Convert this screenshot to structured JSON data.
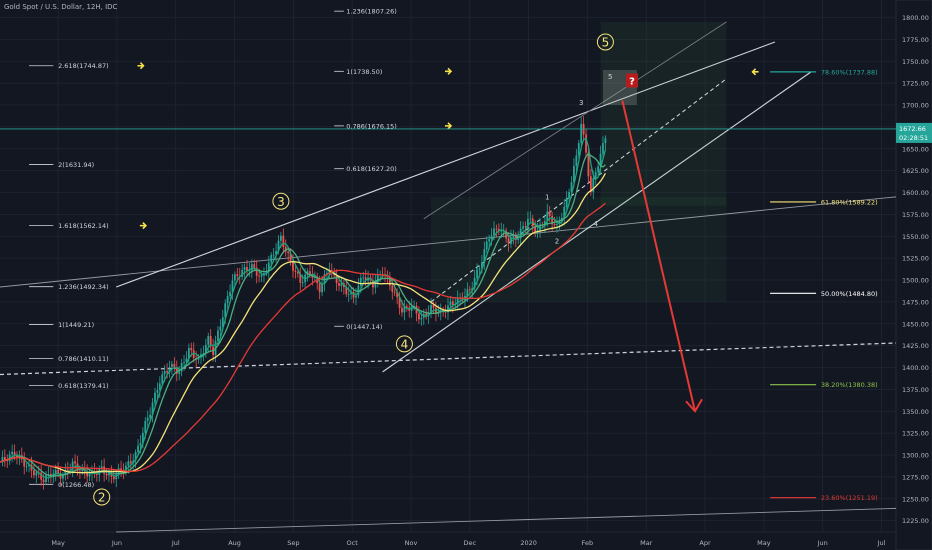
{
  "header": {
    "title": "Gold Spot / U.S. Dollar, 12H, IDC"
  },
  "colors": {
    "background": "#131722",
    "grid": "#1f2533",
    "up": "#26a69a",
    "down": "#ef5350",
    "ema_fast": "#1fa27a",
    "ema_mid": "#4caf80",
    "ma_yellow": "#f5e47a",
    "ma_red": "#e53935",
    "fib_line": "#d1d4dc",
    "label": "#b2b5be",
    "current_price": "#26a69a",
    "arrow_red": "#e53935",
    "arrow_yellow": "#f5e14a"
  },
  "price_axis": {
    "badge_price": "1672.66",
    "badge_countdown": "02:28:51"
  },
  "chart_data": {
    "type": "candlestick",
    "title": "Gold Spot / U.S. Dollar, 12H, IDC",
    "y_ticks": [
      1225,
      1250,
      1275,
      1300,
      1325,
      1350,
      1375,
      1400,
      1425,
      1450,
      1475,
      1500,
      1525,
      1550,
      1575,
      1600,
      1625,
      1650,
      1675,
      1700,
      1725,
      1750,
      1775,
      1800
    ],
    "ylim": [
      1212,
      1820
    ],
    "x_ticks": [
      "May",
      "Jun",
      "Jul",
      "Aug",
      "Sep",
      "Oct",
      "Nov",
      "Dec",
      "2020",
      "Feb",
      "Mar",
      "Apr",
      "May",
      "Jun",
      "Jul"
    ],
    "price_path": [
      [
        0,
        1292
      ],
      [
        6,
        1302
      ],
      [
        12,
        1285
      ],
      [
        18,
        1272
      ],
      [
        22,
        1280
      ],
      [
        26,
        1276
      ],
      [
        30,
        1290
      ],
      [
        34,
        1281
      ],
      [
        38,
        1278
      ],
      [
        42,
        1284
      ],
      [
        46,
        1274
      ],
      [
        50,
        1283
      ],
      [
        52,
        1286
      ],
      [
        56,
        1300
      ],
      [
        60,
        1335
      ],
      [
        62,
        1350
      ],
      [
        66,
        1385
      ],
      [
        70,
        1402
      ],
      [
        74,
        1395
      ],
      [
        78,
        1420
      ],
      [
        82,
        1408
      ],
      [
        86,
        1432
      ],
      [
        88,
        1418
      ],
      [
        92,
        1460
      ],
      [
        96,
        1500
      ],
      [
        100,
        1510
      ],
      [
        104,
        1515
      ],
      [
        108,
        1502
      ],
      [
        112,
        1525
      ],
      [
        116,
        1548
      ],
      [
        120,
        1520
      ],
      [
        124,
        1498
      ],
      [
        128,
        1510
      ],
      [
        132,
        1490
      ],
      [
        136,
        1515
      ],
      [
        138,
        1502
      ],
      [
        142,
        1490
      ],
      [
        146,
        1480
      ],
      [
        150,
        1505
      ],
      [
        154,
        1495
      ],
      [
        158,
        1510
      ],
      [
        162,
        1490
      ],
      [
        166,
        1465
      ],
      [
        170,
        1470
      ],
      [
        174,
        1455
      ],
      [
        178,
        1468
      ],
      [
        182,
        1462
      ],
      [
        186,
        1472
      ],
      [
        190,
        1478
      ],
      [
        194,
        1488
      ],
      [
        198,
        1515
      ],
      [
        202,
        1550
      ],
      [
        206,
        1560
      ],
      [
        210,
        1545
      ],
      [
        214,
        1550
      ],
      [
        218,
        1570
      ],
      [
        222,
        1555
      ],
      [
        226,
        1575
      ],
      [
        230,
        1560
      ],
      [
        234,
        1590
      ],
      [
        238,
        1640
      ],
      [
        240,
        1680
      ],
      [
        242,
        1645
      ],
      [
        244,
        1600
      ],
      [
        246,
        1625
      ],
      [
        248,
        1642
      ],
      [
        250,
        1665
      ]
    ],
    "moving_averages": [
      {
        "name": "ema_fast",
        "color": "#1fa27a",
        "lag": 3
      },
      {
        "name": "ema_mid",
        "color": "#4caf80",
        "lag": 7
      },
      {
        "name": "ma_yellow",
        "color": "#f5e47a",
        "lag": 20
      },
      {
        "name": "ma_red",
        "color": "#e53935",
        "lag": 45
      }
    ],
    "fib_extension_left": [
      {
        "label": "2.618(1744.87)",
        "price": 1744.87
      },
      {
        "label": "2(1631.94)",
        "price": 1631.94
      },
      {
        "label": "1.618(1562.14)",
        "price": 1562.14
      },
      {
        "label": "1.236(1492.34)",
        "price": 1492.34
      },
      {
        "label": "1(1449.21)",
        "price": 1449.21
      },
      {
        "label": "0.786(1410.11)",
        "price": 1410.11
      },
      {
        "label": "0.618(1379.41)",
        "price": 1379.41
      },
      {
        "label": "0(1266.48)",
        "price": 1266.48
      }
    ],
    "fib_extension_mid": [
      {
        "label": "1.236(1807.26)",
        "price": 1807.26
      },
      {
        "label": "1(1738.50)",
        "price": 1738.5
      },
      {
        "label": "0.786(1676.15)",
        "price": 1676.15
      },
      {
        "label": "0.618(1627.20)",
        "price": 1627.2
      },
      {
        "label": "0(1447.14)",
        "price": 1447.14
      }
    ],
    "fib_retracement_right": [
      {
        "label": "78.60%(1737.88)",
        "price": 1737.88,
        "color": "#26a69a"
      },
      {
        "label": "61.80%(1589.22)",
        "price": 1589.22,
        "color": "#f5e47a"
      },
      {
        "label": "50.00%(1484.80)",
        "price": 1484.8,
        "color": "#ffffff"
      },
      {
        "label": "38.20%(1380.38)",
        "price": 1380.38,
        "color": "#8bc34a"
      },
      {
        "label": "23.60%(1251.19)",
        "price": 1251.19,
        "color": "#e53935"
      }
    ],
    "wave_labels_major": [
      {
        "label": "2",
        "t": 42,
        "price": 1252
      },
      {
        "label": "3",
        "t": 116,
        "price": 1590
      },
      {
        "label": "4",
        "t": 167,
        "price": 1427
      },
      {
        "label": "5",
        "t": 250,
        "price": 1772
      }
    ],
    "wave_labels_minor": [
      {
        "label": "1",
        "t": 226,
        "price": 1592
      },
      {
        "label": "2",
        "t": 230,
        "price": 1542
      },
      {
        "label": "3",
        "t": 240,
        "price": 1700
      },
      {
        "label": "4",
        "t": 246,
        "price": 1562
      },
      {
        "label": "5",
        "t": 252,
        "price": 1730
      }
    ],
    "question_box": {
      "label": "?"
    },
    "current_price": 1672.66
  }
}
